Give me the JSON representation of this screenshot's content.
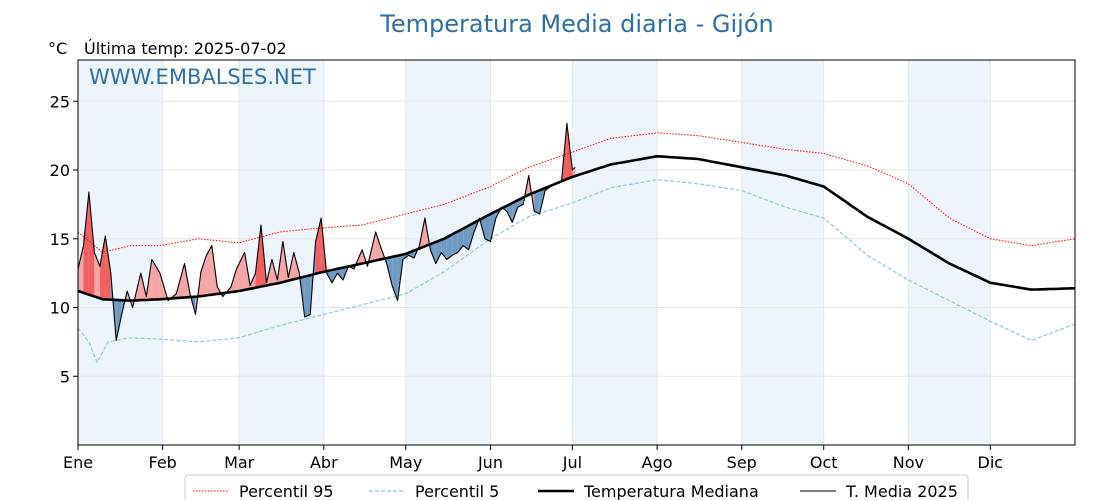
{
  "chart": {
    "title": "Temperatura Media diaria - Gijón",
    "unit": "°C",
    "last_temp_label": "Última temp: 2025-07-02",
    "watermark": "WWW.EMBALSES.NET"
  },
  "legend": [
    {
      "key": "p95",
      "label": "Percentil 95"
    },
    {
      "key": "p5",
      "label": "Percentil 5"
    },
    {
      "key": "median",
      "label": "Temperatura Mediana"
    },
    {
      "key": "y2025",
      "label": "T. Media 2025"
    }
  ],
  "colors": {
    "title": "#2e6fa7",
    "p95": "#ff0000",
    "p5": "#8cc8dc",
    "median": "#000000",
    "y2025": "#000000",
    "above_fill": "#f4a5a5",
    "above_fill_strong": "#ef6161",
    "below_fill": "#6f9ac4",
    "band": "#eef4fb",
    "grid": "#e6e6e6"
  },
  "chart_data": {
    "type": "line",
    "title": "Temperatura Media diaria - Gijón",
    "ylabel": "°C",
    "xlabel": "",
    "x_range": [
      1,
      366
    ],
    "ylim": [
      0,
      28
    ],
    "yticks": [
      5,
      10,
      15,
      20,
      25
    ],
    "month_ticks": [
      {
        "label": "Ene",
        "day": 1
      },
      {
        "label": "Feb",
        "day": 32
      },
      {
        "label": "Mar",
        "day": 60
      },
      {
        "label": "Abr",
        "day": 91
      },
      {
        "label": "May",
        "day": 121
      },
      {
        "label": "Jun",
        "day": 152
      },
      {
        "label": "Jul",
        "day": 182
      },
      {
        "label": "Ago",
        "day": 213
      },
      {
        "label": "Sep",
        "day": 244
      },
      {
        "label": "Oct",
        "day": 274
      },
      {
        "label": "Nov",
        "day": 305
      },
      {
        "label": "Dic",
        "day": 335
      }
    ],
    "grid": true,
    "legend_position": "bottom",
    "series": [
      {
        "name": "Percentil 95",
        "style": "dotted",
        "points": [
          [
            1,
            15.5
          ],
          [
            10,
            14.0
          ],
          [
            20,
            14.5
          ],
          [
            31,
            14.5
          ],
          [
            45,
            15.0
          ],
          [
            60,
            14.7
          ],
          [
            75,
            15.5
          ],
          [
            91,
            15.8
          ],
          [
            105,
            16.0
          ],
          [
            121,
            16.8
          ],
          [
            135,
            17.5
          ],
          [
            152,
            18.8
          ],
          [
            166,
            20.2
          ],
          [
            182,
            21.3
          ],
          [
            196,
            22.3
          ],
          [
            213,
            22.7
          ],
          [
            228,
            22.5
          ],
          [
            244,
            22.0
          ],
          [
            260,
            21.5
          ],
          [
            274,
            21.2
          ],
          [
            290,
            20.3
          ],
          [
            305,
            19.0
          ],
          [
            320,
            16.5
          ],
          [
            335,
            15.0
          ],
          [
            350,
            14.5
          ],
          [
            366,
            15.0
          ]
        ]
      },
      {
        "name": "Percentil 5",
        "style": "dashed",
        "points": [
          [
            1,
            8.5
          ],
          [
            5,
            7.5
          ],
          [
            8,
            6.0
          ],
          [
            12,
            7.5
          ],
          [
            20,
            7.8
          ],
          [
            31,
            7.7
          ],
          [
            45,
            7.5
          ],
          [
            60,
            7.8
          ],
          [
            75,
            8.7
          ],
          [
            91,
            9.5
          ],
          [
            105,
            10.2
          ],
          [
            121,
            11.0
          ],
          [
            135,
            12.6
          ],
          [
            152,
            15.0
          ],
          [
            166,
            16.6
          ],
          [
            182,
            17.6
          ],
          [
            196,
            18.7
          ],
          [
            213,
            19.3
          ],
          [
            228,
            19.0
          ],
          [
            244,
            18.5
          ],
          [
            260,
            17.3
          ],
          [
            274,
            16.5
          ],
          [
            290,
            13.8
          ],
          [
            305,
            12.0
          ],
          [
            320,
            10.5
          ],
          [
            335,
            9.0
          ],
          [
            350,
            7.6
          ],
          [
            366,
            8.8
          ]
        ]
      },
      {
        "name": "Temperatura Mediana",
        "style": "solid-bold",
        "points": [
          [
            1,
            11.2
          ],
          [
            10,
            10.6
          ],
          [
            20,
            10.5
          ],
          [
            31,
            10.6
          ],
          [
            45,
            10.8
          ],
          [
            60,
            11.2
          ],
          [
            75,
            11.8
          ],
          [
            91,
            12.6
          ],
          [
            105,
            13.2
          ],
          [
            121,
            13.9
          ],
          [
            135,
            15.0
          ],
          [
            152,
            16.8
          ],
          [
            166,
            18.2
          ],
          [
            182,
            19.5
          ],
          [
            196,
            20.4
          ],
          [
            213,
            21.0
          ],
          [
            228,
            20.8
          ],
          [
            244,
            20.2
          ],
          [
            260,
            19.6
          ],
          [
            274,
            18.8
          ],
          [
            290,
            16.6
          ],
          [
            305,
            15.0
          ],
          [
            320,
            13.2
          ],
          [
            335,
            11.8
          ],
          [
            350,
            11.3
          ],
          [
            366,
            11.4
          ]
        ]
      },
      {
        "name": "T. Media 2025",
        "style": "solid-thin",
        "points": [
          [
            1,
            12.8
          ],
          [
            3,
            14.5
          ],
          [
            5,
            18.4
          ],
          [
            7,
            14.0
          ],
          [
            9,
            13.0
          ],
          [
            11,
            15.2
          ],
          [
            13,
            12.5
          ],
          [
            15,
            7.6
          ],
          [
            17,
            9.5
          ],
          [
            19,
            11.2
          ],
          [
            21,
            10.0
          ],
          [
            24,
            12.5
          ],
          [
            26,
            10.8
          ],
          [
            28,
            13.5
          ],
          [
            31,
            12.5
          ],
          [
            34,
            10.5
          ],
          [
            37,
            11.0
          ],
          [
            40,
            13.2
          ],
          [
            42,
            11.0
          ],
          [
            44,
            9.5
          ],
          [
            46,
            12.6
          ],
          [
            48,
            13.8
          ],
          [
            50,
            14.5
          ],
          [
            52,
            11.5
          ],
          [
            54,
            10.8
          ],
          [
            57,
            11.5
          ],
          [
            59,
            12.8
          ],
          [
            62,
            14.0
          ],
          [
            64,
            11.6
          ],
          [
            66,
            12.5
          ],
          [
            68,
            16.0
          ],
          [
            70,
            11.8
          ],
          [
            72,
            13.5
          ],
          [
            74,
            12.0
          ],
          [
            76,
            14.8
          ],
          [
            78,
            12.2
          ],
          [
            80,
            14.0
          ],
          [
            82,
            12.5
          ],
          [
            84,
            9.3
          ],
          [
            86,
            9.5
          ],
          [
            88,
            14.8
          ],
          [
            90,
            16.5
          ],
          [
            92,
            12.5
          ],
          [
            94,
            11.8
          ],
          [
            96,
            12.5
          ],
          [
            98,
            12.0
          ],
          [
            100,
            13.0
          ],
          [
            102,
            12.8
          ],
          [
            105,
            14.2
          ],
          [
            107,
            13.0
          ],
          [
            110,
            15.5
          ],
          [
            112,
            14.3
          ],
          [
            114,
            13.2
          ],
          [
            116,
            11.6
          ],
          [
            118,
            10.5
          ],
          [
            120,
            13.5
          ],
          [
            122,
            13.8
          ],
          [
            124,
            13.6
          ],
          [
            126,
            14.5
          ],
          [
            128,
            16.5
          ],
          [
            130,
            14.2
          ],
          [
            132,
            13.2
          ],
          [
            134,
            14.0
          ],
          [
            136,
            13.5
          ],
          [
            138,
            13.8
          ],
          [
            140,
            14.0
          ],
          [
            142,
            14.5
          ],
          [
            144,
            14.2
          ],
          [
            146,
            15.5
          ],
          [
            148,
            16.5
          ],
          [
            150,
            15.0
          ],
          [
            152,
            14.8
          ],
          [
            154,
            16.5
          ],
          [
            156,
            17.3
          ],
          [
            158,
            17.0
          ],
          [
            160,
            16.2
          ],
          [
            162,
            17.3
          ],
          [
            164,
            17.5
          ],
          [
            166,
            19.6
          ],
          [
            168,
            17.0
          ],
          [
            170,
            16.8
          ],
          [
            172,
            18.5
          ],
          [
            174,
            18.8
          ],
          [
            176,
            19.0
          ],
          [
            178,
            19.2
          ],
          [
            180,
            23.4
          ],
          [
            182,
            20.0
          ],
          [
            183,
            20.2
          ]
        ]
      }
    ]
  }
}
